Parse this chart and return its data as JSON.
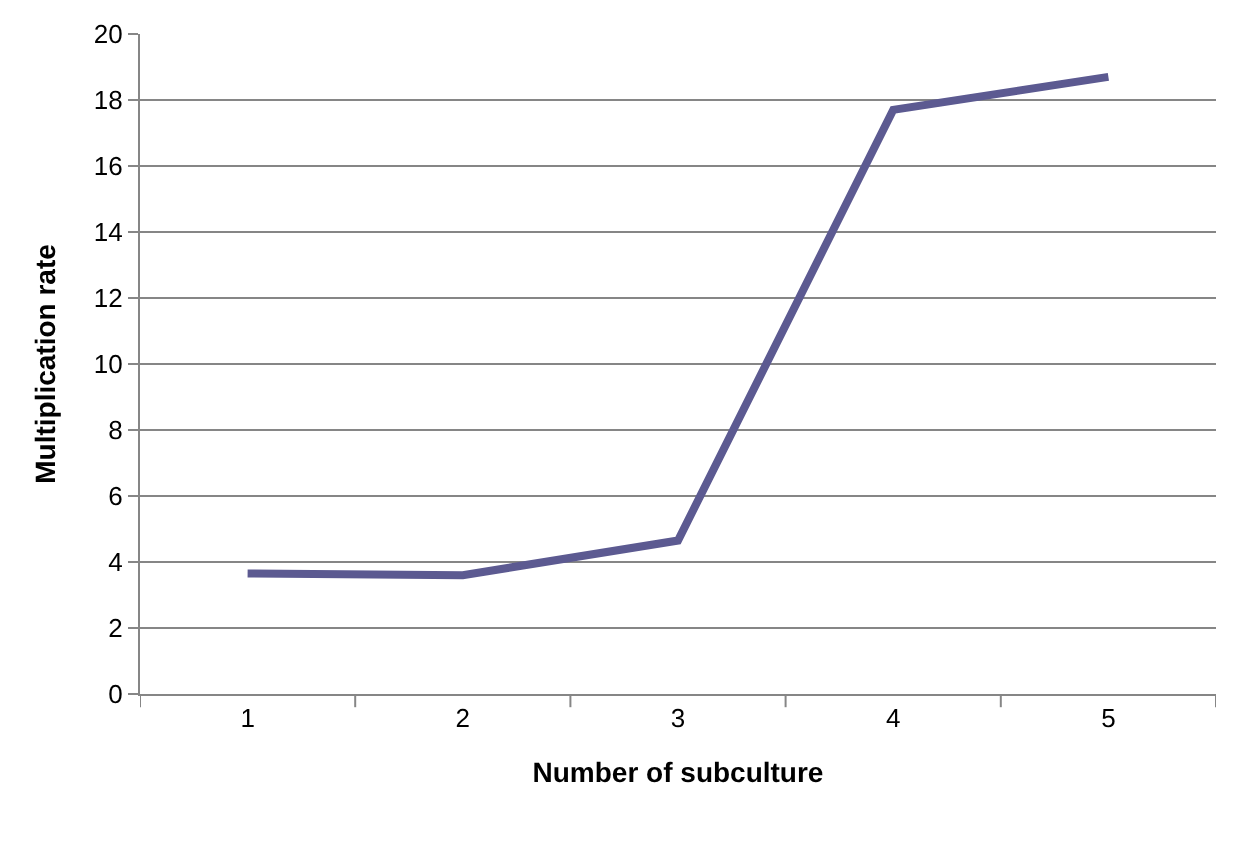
{
  "chart_data": {
    "type": "line",
    "xlabel": "Number of subculture",
    "ylabel": "Multiplication rate",
    "categories": [
      "1",
      "2",
      "3",
      "4",
      "5"
    ],
    "series": [
      {
        "color": "#5c5a91",
        "values": [
          3.65,
          3.6,
          4.65,
          17.7,
          18.7
        ]
      }
    ],
    "ylim": [
      0,
      20
    ],
    "yticks": [
      0,
      2,
      4,
      6,
      8,
      10,
      12,
      14,
      16,
      18,
      20
    ],
    "grid": "y",
    "legend": false,
    "marker": "none",
    "line_style": "solid"
  }
}
